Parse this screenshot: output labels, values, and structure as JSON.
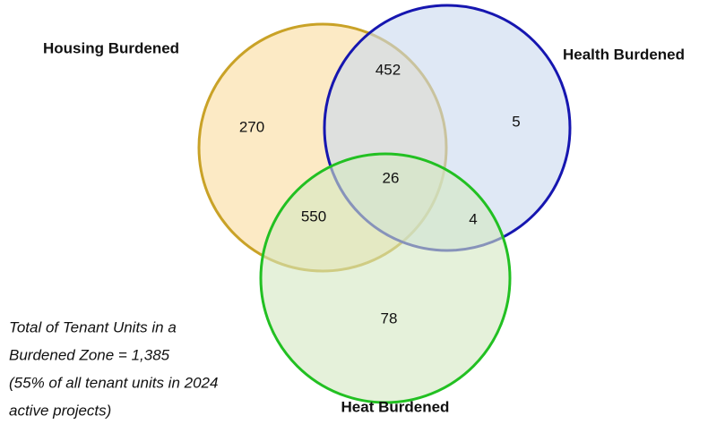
{
  "sets": [
    {
      "label": "Housing Burdened"
    },
    {
      "label": "Health Burdened"
    },
    {
      "label": "Heat Burdened"
    }
  ],
  "regions": {
    "housing_only": "270",
    "housing_health": "452",
    "health_only": "5",
    "all_three": "26",
    "housing_heat": "550",
    "health_heat": "4",
    "heat_only": "78"
  },
  "note": {
    "lines": [
      "Total of Tenant Units in a",
      "Burdened Zone = 1,385",
      "(55% of all tenant units in 2024",
      "active projects)"
    ]
  }
}
